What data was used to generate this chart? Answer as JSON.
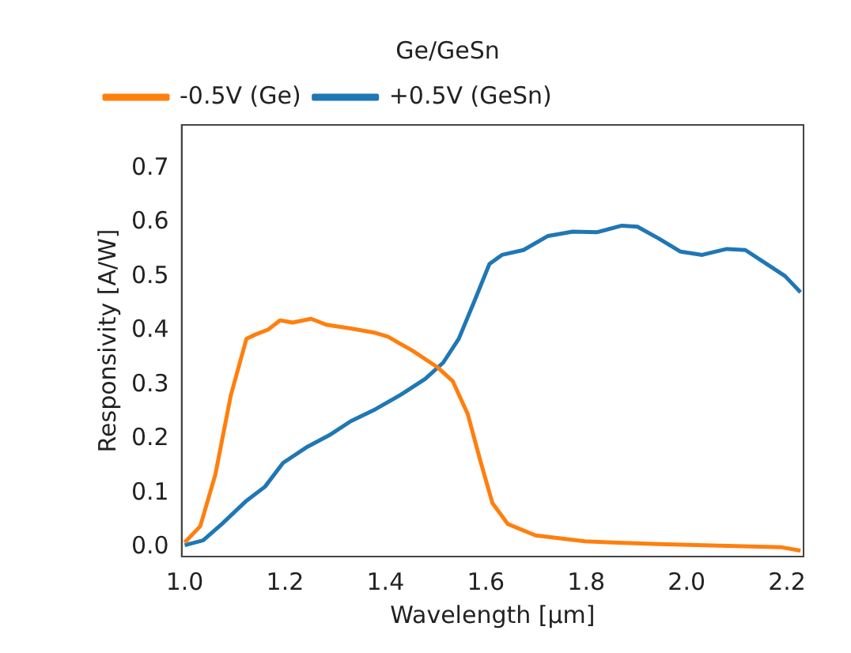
{
  "chart_data": {
    "type": "line",
    "title": "Ge/GeSn",
    "xlabel": "Wavelength [μm]",
    "ylabel": "Responsivity [A/W]",
    "xlim": [
      0.994,
      2.233
    ],
    "ylim": [
      -0.017,
      0.78
    ],
    "xticks": [
      {
        "value": 1.0,
        "label": "1.0"
      },
      {
        "value": 1.2,
        "label": "1.2"
      },
      {
        "value": 1.4,
        "label": "1.4"
      },
      {
        "value": 1.6,
        "label": "1.6"
      },
      {
        "value": 1.8,
        "label": "1.8"
      },
      {
        "value": 2.0,
        "label": "2.0"
      },
      {
        "value": 2.2,
        "label": "2.2"
      }
    ],
    "yticks": [
      {
        "value": 0,
        "label": "0.0"
      },
      {
        "value": 0.1,
        "label": "0.1"
      },
      {
        "value": 0.2,
        "label": "0.2"
      },
      {
        "value": 0.3,
        "label": "0.3"
      },
      {
        "value": 0.4,
        "label": "0.4"
      },
      {
        "value": 0.5,
        "label": "0.5"
      },
      {
        "value": 0.6,
        "label": "0.6"
      },
      {
        "value": 0.7,
        "label": "0.7"
      }
    ],
    "grid": false,
    "legend": "top left",
    "marker": "none",
    "line_style": "solid",
    "series": [
      {
        "name": "-0.5V (Ge)",
        "color": "#ff7f0e",
        "x": [
          1.0,
          1.031,
          1.061,
          1.092,
          1.123,
          1.141,
          1.166,
          1.19,
          1.215,
          1.252,
          1.282,
          1.331,
          1.38,
          1.405,
          1.454,
          1.503,
          1.534,
          1.564,
          1.589,
          1.613,
          1.644,
          1.699,
          1.798,
          1.945,
          2.067,
          2.19,
          2.227
        ],
        "values": [
          0.009,
          0.039,
          0.134,
          0.281,
          0.385,
          0.393,
          0.402,
          0.419,
          0.415,
          0.422,
          0.411,
          0.404,
          0.396,
          0.389,
          0.363,
          0.333,
          0.307,
          0.246,
          0.16,
          0.082,
          0.043,
          0.022,
          0.011,
          0.006,
          0.003,
          0.0,
          -0.006
        ]
      },
      {
        "name": "+0.5V (GeSn)",
        "color": "#1f77b4",
        "x": [
          1.0,
          1.037,
          1.074,
          1.123,
          1.16,
          1.196,
          1.245,
          1.288,
          1.331,
          1.38,
          1.429,
          1.479,
          1.515,
          1.546,
          1.577,
          1.607,
          1.632,
          1.675,
          1.724,
          1.773,
          1.822,
          1.871,
          1.902,
          1.945,
          1.988,
          2.031,
          2.08,
          2.117,
          2.16,
          2.196,
          2.227
        ],
        "values": [
          0.004,
          0.013,
          0.043,
          0.086,
          0.112,
          0.156,
          0.186,
          0.207,
          0.233,
          0.255,
          0.281,
          0.311,
          0.341,
          0.385,
          0.454,
          0.523,
          0.54,
          0.549,
          0.575,
          0.583,
          0.582,
          0.594,
          0.592,
          0.57,
          0.546,
          0.54,
          0.551,
          0.549,
          0.523,
          0.501,
          0.471
        ]
      }
    ]
  }
}
